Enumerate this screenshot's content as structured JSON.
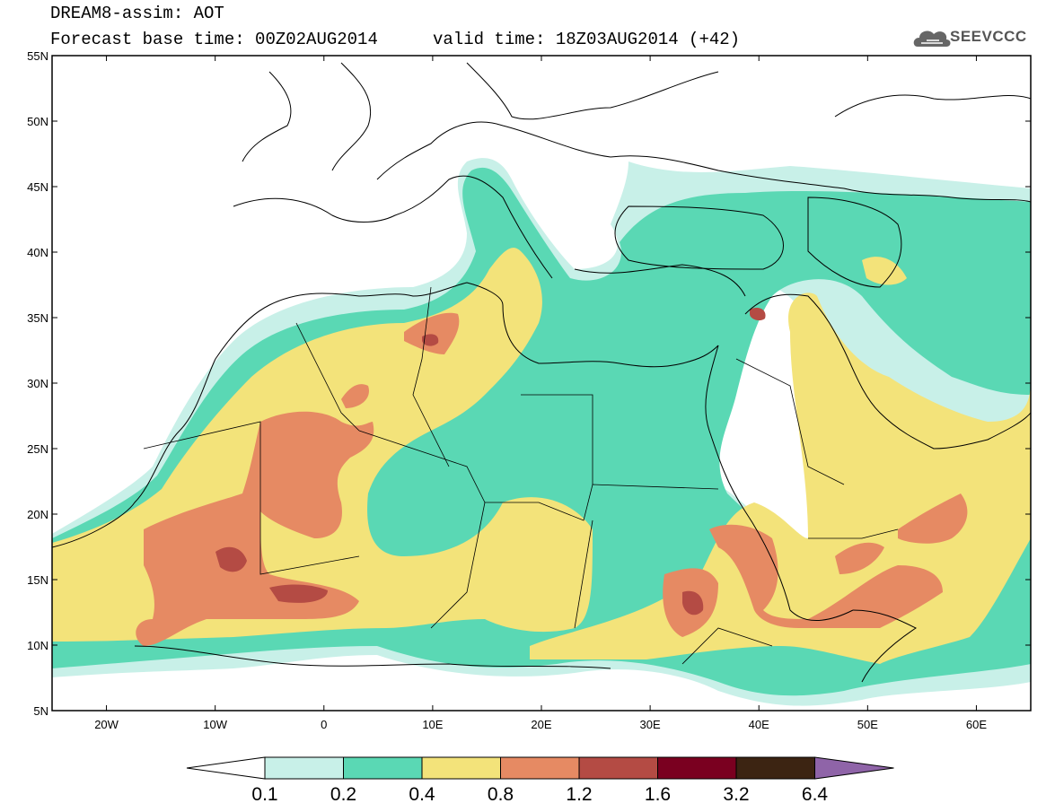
{
  "header": {
    "title": "DREAM8-assim: AOT",
    "base_time": "Forecast base time: 00Z02AUG2014",
    "valid_time": "valid time: 18Z03AUG2014 (+42)"
  },
  "logo": {
    "text": "SEEVCCC",
    "icon": "cloud-icon"
  },
  "map": {
    "lon_range": [
      -25,
      65
    ],
    "lat_range": [
      5,
      55
    ],
    "lat_ticks": [
      {
        "value": 55,
        "label": "55N"
      },
      {
        "value": 50,
        "label": "50N"
      },
      {
        "value": 45,
        "label": "45N"
      },
      {
        "value": 40,
        "label": "40N"
      },
      {
        "value": 35,
        "label": "35N"
      },
      {
        "value": 30,
        "label": "30N"
      },
      {
        "value": 25,
        "label": "25N"
      },
      {
        "value": 20,
        "label": "20N"
      },
      {
        "value": 15,
        "label": "15N"
      },
      {
        "value": 10,
        "label": "10N"
      },
      {
        "value": 5,
        "label": "5N"
      }
    ],
    "lon_ticks": [
      {
        "value": -20,
        "label": "20W"
      },
      {
        "value": -10,
        "label": "10W"
      },
      {
        "value": 0,
        "label": "0"
      },
      {
        "value": 10,
        "label": "10E"
      },
      {
        "value": 20,
        "label": "20E"
      },
      {
        "value": 30,
        "label": "30E"
      },
      {
        "value": 40,
        "label": "40E"
      },
      {
        "value": 50,
        "label": "50E"
      },
      {
        "value": 60,
        "label": "60E"
      }
    ]
  },
  "colorbar": {
    "labels": [
      "0.1",
      "0.2",
      "0.4",
      "0.8",
      "1.2",
      "1.6",
      "3.2",
      "6.4"
    ],
    "colors": [
      "#c8f0e8",
      "#5ad8b4",
      "#f3e37a",
      "#e68a63",
      "#b44b44",
      "#7a0020",
      "#3c2412",
      "#8f64a8"
    ],
    "low_color": "#ffffff"
  }
}
